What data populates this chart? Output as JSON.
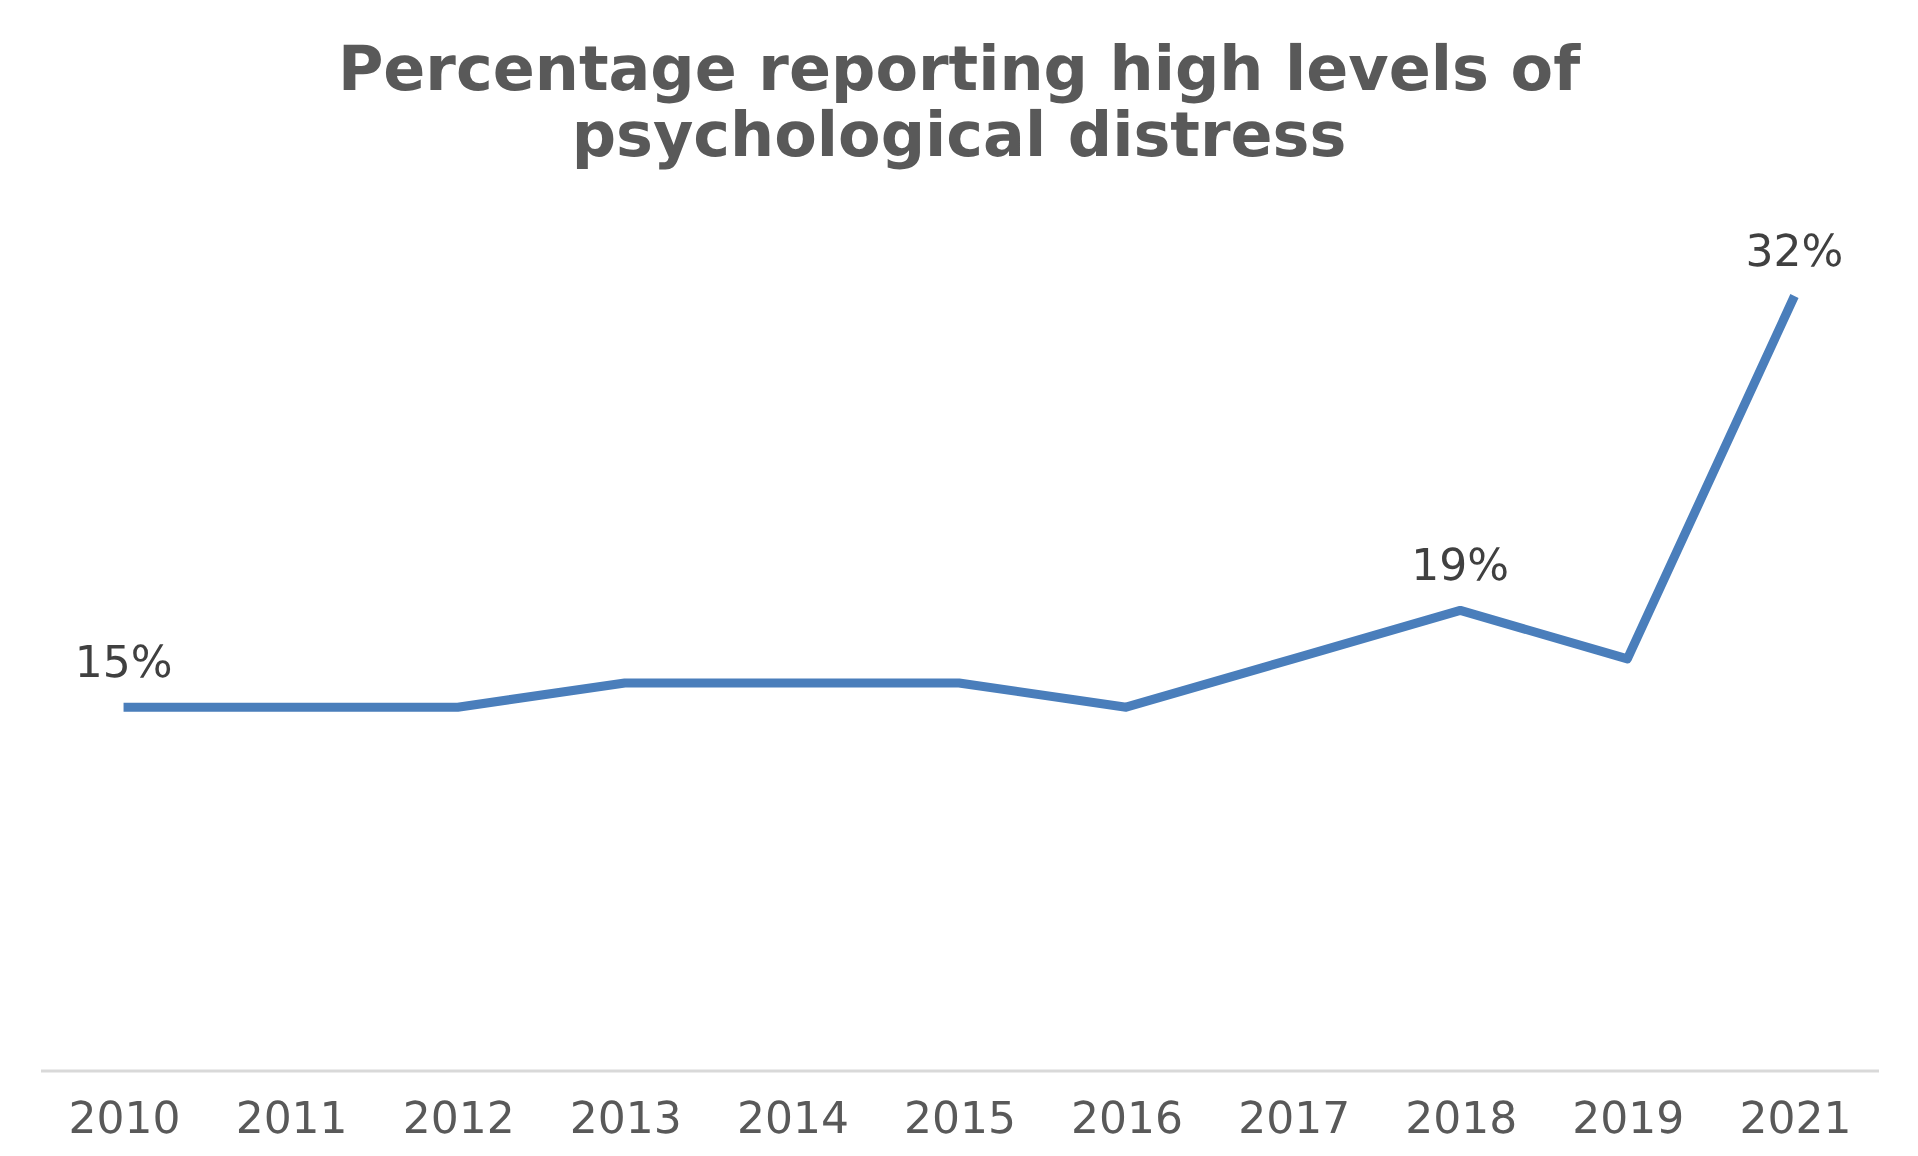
{
  "chart_data": {
    "type": "line",
    "title": "Percentage reporting high levels of psychological distress",
    "categories": [
      "2010",
      "2011",
      "2012",
      "2013",
      "2014",
      "2015",
      "2016",
      "2017",
      "2018",
      "2019",
      "2021"
    ],
    "series": [
      {
        "color": "#4a7ebb",
        "values": [
          15,
          15,
          15,
          16,
          16,
          16,
          15,
          17,
          19,
          17,
          32
        ],
        "value_labels": [
          "15%",
          null,
          null,
          null,
          null,
          null,
          null,
          null,
          "19%",
          null,
          "32%"
        ]
      }
    ],
    "tick_labels": "x",
    "grid": false,
    "marker": "none",
    "line_style": "solid"
  }
}
